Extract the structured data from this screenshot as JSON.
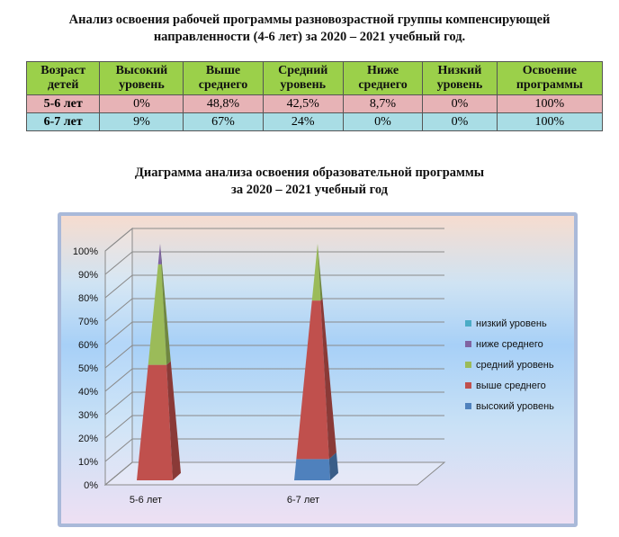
{
  "document": {
    "title_line1": "Анализ освоения рабочей программы разновозрастной группы компенсирующей",
    "title_line2": "направленности (4-6 лет) за 2020 – 2021 учебный год."
  },
  "table": {
    "headers": [
      [
        "Возраст",
        "детей"
      ],
      [
        "Высокий",
        "уровень"
      ],
      [
        "Выше",
        "среднего"
      ],
      [
        "Средний",
        "уровень"
      ],
      [
        "Ниже",
        "среднего"
      ],
      [
        "Низкий",
        "уровень"
      ],
      [
        "Освоение",
        "программы"
      ]
    ],
    "rows": [
      [
        "5-6 лет",
        "0%",
        "48,8%",
        "42,5%",
        "8,7%",
        "0%",
        "100%"
      ],
      [
        "6-7 лет",
        "9%",
        "67%",
        "24%",
        "0%",
        "0%",
        "100%"
      ]
    ],
    "row_colors": [
      "#e7b3b6",
      "#a9dde5"
    ],
    "header_color": "#9bd04a"
  },
  "chart_heading": {
    "line1": "Диаграмма анализа освоения образовательной программы",
    "line2": "за 2020 – 2021 учебный год"
  },
  "chart_data": {
    "type": "bar",
    "style": "stacked-100 3D pyramid",
    "categories": [
      "5-6 лет",
      "6-7 лет"
    ],
    "series": [
      {
        "name": "высокий уровень",
        "values": [
          0,
          9
        ],
        "color": "#4f81bd"
      },
      {
        "name": "выше среднего",
        "values": [
          48.8,
          67
        ],
        "color": "#c0504d"
      },
      {
        "name": "средний уровень",
        "values": [
          42.5,
          24
        ],
        "color": "#9bbb59"
      },
      {
        "name": "ниже среднего",
        "values": [
          8.7,
          0
        ],
        "color": "#8064a2"
      },
      {
        "name": "низкий уровень",
        "values": [
          0,
          0
        ],
        "color": "#4bacc6"
      }
    ],
    "y_ticks": [
      "0%",
      "10%",
      "20%",
      "30%",
      "40%",
      "50%",
      "60%",
      "70%",
      "80%",
      "90%",
      "100%"
    ],
    "ylim": [
      0,
      100
    ],
    "grid": true,
    "legend_position": "right"
  }
}
